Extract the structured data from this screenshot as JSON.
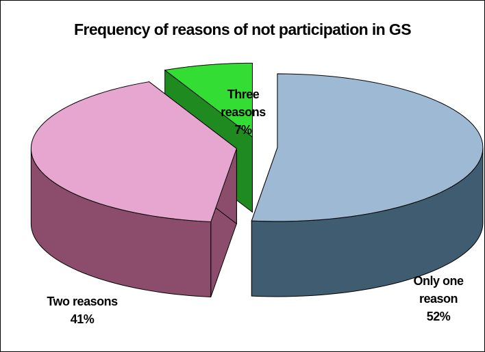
{
  "chart_data": {
    "type": "pie3d",
    "title": "Frequency of reasons of not participation in GS",
    "categories": [
      "Only one reason",
      "Two reasons",
      "Three reasons"
    ],
    "values": [
      52,
      41,
      7
    ],
    "value_labels": [
      "52%",
      "41%",
      "7%"
    ],
    "colors": [
      "#9db9d3",
      "#e6a6cf",
      "#33dd33"
    ],
    "side_colors": [
      "#3f5c70",
      "#8c4c6c",
      "#1f8a1f"
    ]
  }
}
